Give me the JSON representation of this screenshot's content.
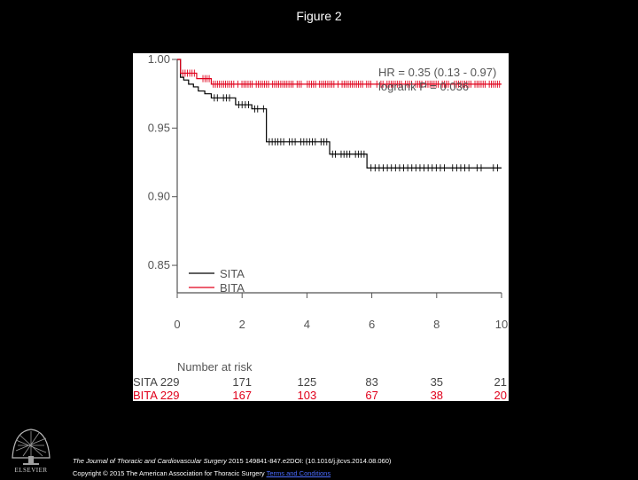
{
  "slide": {
    "title": "Figure 2"
  },
  "chart_data": {
    "type": "line",
    "title": "",
    "xlabel": "",
    "ylabel": "",
    "xlim": [
      0,
      10
    ],
    "ylim": [
      0.83,
      1.0
    ],
    "x_ticks": [
      "0",
      "2",
      "4",
      "6",
      "8",
      "10"
    ],
    "y_ticks": [
      "1.00",
      "0.95",
      "0.90",
      "0.85"
    ],
    "annotations": [
      "HR = 0.35 (0.13 - 0.97)",
      "logrank P = 0.036"
    ],
    "legend_placement": "bottom-left",
    "series": [
      {
        "name": "SITA",
        "color": "#000000",
        "step_x": [
          0,
          0.1,
          0.2,
          0.35,
          0.5,
          0.65,
          0.85,
          1.05,
          1.8,
          2.3,
          2.75,
          4.7,
          5.85,
          10
        ],
        "step_y": [
          1.0,
          0.987,
          0.985,
          0.982,
          0.98,
          0.977,
          0.975,
          0.972,
          0.967,
          0.964,
          0.94,
          0.931,
          0.921,
          0.921
        ]
      },
      {
        "name": "BITA",
        "color": "#e0001b",
        "step_x": [
          0,
          0.1,
          0.6,
          1.05,
          10
        ],
        "step_y": [
          1.0,
          0.99,
          0.986,
          0.982,
          0.982
        ]
      }
    ],
    "number_at_risk": {
      "header": "Number at risk",
      "times": [
        0,
        2,
        4,
        6,
        8,
        10
      ],
      "rows": [
        {
          "label": "SITA",
          "color": "#444444",
          "counts": [
            229,
            171,
            125,
            83,
            35,
            21
          ]
        },
        {
          "label": "BITA",
          "color": "#e0001b",
          "counts": [
            229,
            167,
            103,
            67,
            38,
            20
          ]
        }
      ]
    }
  },
  "footer": {
    "journal": "The Journal of Thoracic and Cardiovascular Surgery",
    "reference": " 2015 149841-847.e2DOI: (10.1016/j.jtcvs.2014.08.060)",
    "copyright": "Copyright © 2015 The American Association for Thoracic Surgery ",
    "terms_link": "Terms and Conditions",
    "publisher": "ELSEVIER"
  }
}
